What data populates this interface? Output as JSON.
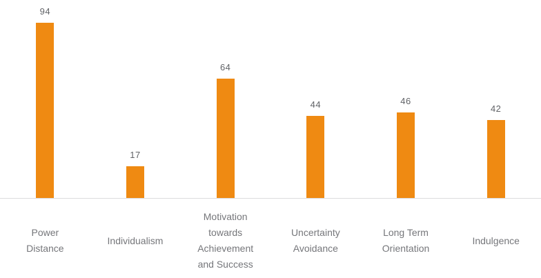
{
  "chart_data": {
    "type": "bar",
    "title": "",
    "xlabel": "",
    "ylabel": "",
    "categories": [
      "Power Distance",
      "Individualism",
      "Motivation towards Achievement and Success",
      "Uncertainty Avoidance",
      "Long Term Orientation",
      "Indulgence"
    ],
    "category_label_lines": [
      [
        "Power",
        "Distance"
      ],
      [
        "Individualism"
      ],
      [
        "Motivation",
        "towards",
        "Achievement",
        "and Success"
      ],
      [
        "Uncertainty",
        "Avoidance"
      ],
      [
        "Long Term",
        "Orientation"
      ],
      [
        "Indulgence"
      ]
    ],
    "values": [
      94,
      17,
      64,
      44,
      46,
      42
    ],
    "value_labels_shown": true,
    "ylim": [
      0,
      100
    ],
    "grid": false,
    "legend": false,
    "colors": {
      "bar": "#ef8a12",
      "value_label": "#606266",
      "category_label": "#75767a",
      "axis_line": "#dbdbdd",
      "background": "#ffffff"
    }
  }
}
